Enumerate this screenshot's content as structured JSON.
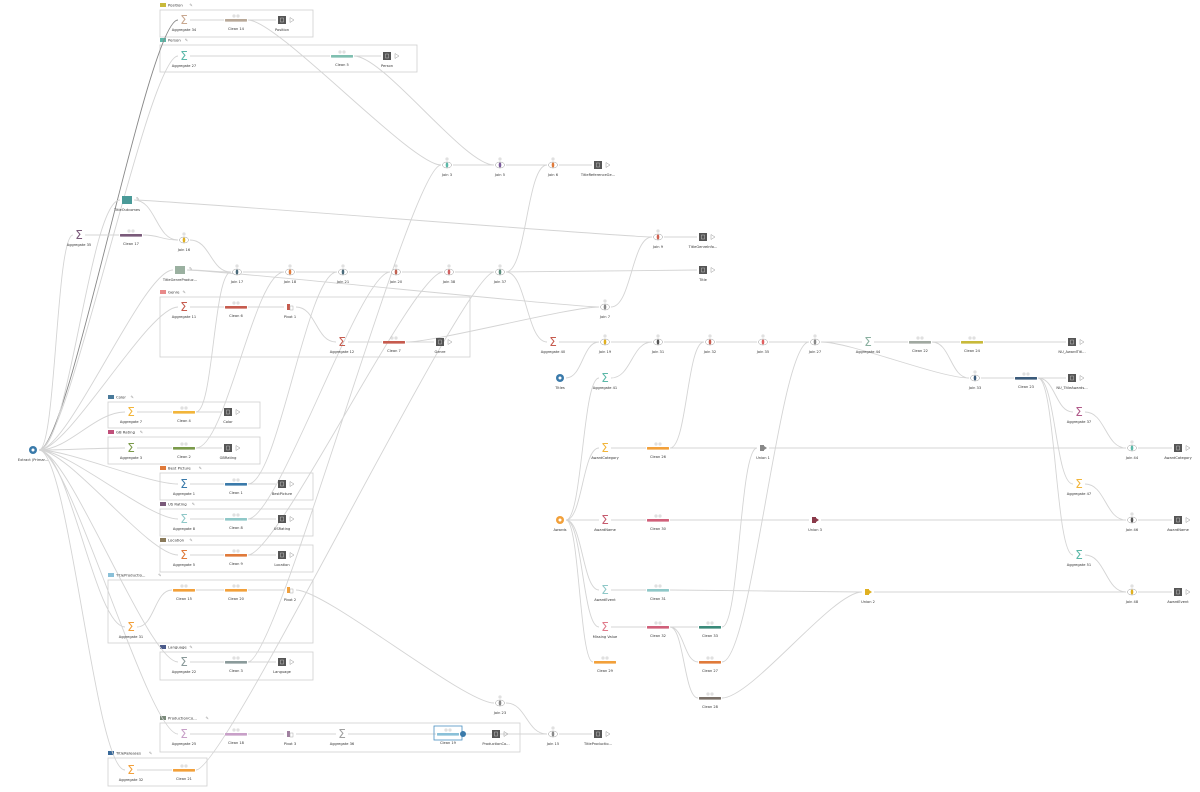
{
  "groups": [
    {
      "id": "g_position",
      "label": "Position",
      "color": "#c8b93a"
    },
    {
      "id": "g_person",
      "label": "Person",
      "color": "#5bb8a8"
    },
    {
      "id": "g_genre",
      "label": "Genre",
      "color": "#e88a8a"
    },
    {
      "id": "g_color",
      "label": "Color",
      "color": "#4a7a9a"
    },
    {
      "id": "g_gbrating",
      "label": "GB Rating",
      "color": "#c0507a"
    },
    {
      "id": "g_bestpicture",
      "label": "Best Picture",
      "color": "#e07a3a"
    },
    {
      "id": "g_usrating",
      "label": "US Rating",
      "color": "#7a5a7a"
    },
    {
      "id": "g_location",
      "label": "Location",
      "color": "#8a7a5a"
    },
    {
      "id": "g_titleproduction",
      "label": "TitleProductio...",
      "color": "#8ac0d8"
    },
    {
      "id": "g_language",
      "label": "Language",
      "color": "#4a5a8a"
    },
    {
      "id": "g_productionco",
      "label": "ProductionCo...",
      "color": "#7a8a7a"
    },
    {
      "id": "g_titlereleases",
      "label": "TitleReleases",
      "color": "#3a6a9a"
    }
  ],
  "nodes": {
    "ex": {
      "label": "Extract (Primar...",
      "type": "input",
      "color": "#3a7aaa"
    },
    "agg34": {
      "label": "Aggregate 34",
      "type": "aggregate",
      "color": "#c8a890"
    },
    "clean14": {
      "label": "Clean 14",
      "type": "clean",
      "color": "#b8a898"
    },
    "out_position": {
      "label": "Position",
      "type": "output"
    },
    "agg27": {
      "label": "Aggregate 27",
      "type": "aggregate",
      "color": "#5bb8a8"
    },
    "clean5": {
      "label": "Clean 5",
      "type": "clean",
      "color": "#7fbfb0"
    },
    "out_person": {
      "label": "Person",
      "type": "output"
    },
    "join3": {
      "label": "Join 3",
      "type": "join",
      "color": "#5bb8a8"
    },
    "join5": {
      "label": "Join 5",
      "type": "join",
      "color": "#7a5a9a"
    },
    "join6": {
      "label": "Join 6",
      "type": "join",
      "color": "#e07a3a"
    },
    "out_trg": {
      "label": "TitleReferenceGe...",
      "type": "output"
    },
    "titleoutcomes": {
      "label": "TitleOutcomes",
      "type": "folder",
      "color": "#4a9a98"
    },
    "agg35": {
      "label": "Aggregate 35",
      "type": "aggregate",
      "color": "#7a5a7a"
    },
    "clean17": {
      "label": "Clean 17",
      "type": "clean",
      "color": "#7a5a7a"
    },
    "join16": {
      "label": "Join 16",
      "type": "join",
      "color": "#e0b020"
    },
    "join9": {
      "label": "Join 9",
      "type": "join",
      "color": "#d06050"
    },
    "out_tgi": {
      "label": "TitleGenreInfo...",
      "type": "output"
    },
    "tgp": {
      "label": "TitleGenreProduc...",
      "type": "folder",
      "color": "#9ab0a0"
    },
    "join17": {
      "label": "Join 17",
      "type": "join",
      "color": "#4a6a7a"
    },
    "join18": {
      "label": "Join 18",
      "type": "join",
      "color": "#e07a3a"
    },
    "join21": {
      "label": "Join 21",
      "type": "join",
      "color": "#4a6a7a"
    },
    "join20": {
      "label": "Join 20",
      "type": "join",
      "color": "#c06050"
    },
    "join38": {
      "label": "Join 38",
      "type": "join",
      "color": "#d06060"
    },
    "join37": {
      "label": "Join 37",
      "type": "join",
      "color": "#5a8a7a"
    },
    "out_title": {
      "label": "Title",
      "type": "output"
    },
    "join7": {
      "label": "Join 7",
      "type": "join",
      "color": "#888888"
    },
    "agg11": {
      "label": "Aggregate 11",
      "type": "aggregate",
      "color": "#c65b4e"
    },
    "clean6": {
      "label": "Clean 6",
      "type": "clean",
      "color": "#c65b4e"
    },
    "pivot1": {
      "label": "Pivot 1",
      "type": "pivot",
      "color": "#c65b4e"
    },
    "agg12": {
      "label": "Aggregate 12",
      "type": "aggregate",
      "color": "#c65b4e"
    },
    "clean7": {
      "label": "Clean 7",
      "type": "clean",
      "color": "#c65b4e"
    },
    "out_genre": {
      "label": "Genre",
      "type": "output"
    },
    "agg7": {
      "label": "Aggregate 7",
      "type": "aggregate",
      "color": "#f2b53a"
    },
    "clean4": {
      "label": "Clean 4",
      "type": "clean",
      "color": "#f2b53a"
    },
    "out_color": {
      "label": "Color",
      "type": "output"
    },
    "agg3": {
      "label": "Aggregate 3",
      "type": "aggregate",
      "color": "#7a9a4a"
    },
    "clean2": {
      "label": "Clean 2",
      "type": "clean",
      "color": "#7a9a4a"
    },
    "out_gbrating": {
      "label": "GBRating",
      "type": "output"
    },
    "agg1": {
      "label": "Aggregate 1",
      "type": "aggregate",
      "color": "#3a7aaa"
    },
    "clean1": {
      "label": "Clean 1",
      "type": "clean",
      "color": "#3a7aaa"
    },
    "out_bestpicture": {
      "label": "BestPicture",
      "type": "output"
    },
    "agg8": {
      "label": "Aggregate 8",
      "type": "aggregate",
      "color": "#8fc8c8"
    },
    "clean8": {
      "label": "Clean 8",
      "type": "clean",
      "color": "#8fc8c8"
    },
    "out_usrating": {
      "label": "USRating",
      "type": "output"
    },
    "agg5": {
      "label": "Aggregate 5",
      "type": "aggregate",
      "color": "#e07a3a"
    },
    "clean9": {
      "label": "Clean 9",
      "type": "clean",
      "color": "#e07a3a"
    },
    "out_location": {
      "label": "Location",
      "type": "output"
    },
    "clean15": {
      "label": "Clean 15",
      "type": "clean",
      "color": "#f2a03a"
    },
    "clean20": {
      "label": "Clean 20",
      "type": "clean",
      "color": "#f2a03a"
    },
    "pivot2": {
      "label": "Pivot 2",
      "type": "pivot",
      "color": "#f2a03a"
    },
    "agg31": {
      "label": "Aggregate 31",
      "type": "aggregate",
      "color": "#f2a03a"
    },
    "agg22": {
      "label": "Aggregate 22",
      "type": "aggregate",
      "color": "#8a9a9a"
    },
    "clean3": {
      "label": "Clean 3",
      "type": "clean",
      "color": "#8a9a9a"
    },
    "out_language": {
      "label": "Language",
      "type": "output"
    },
    "agg25": {
      "label": "Aggregate 25",
      "type": "aggregate",
      "color": "#c8a0c8"
    },
    "clean18": {
      "label": "Clean 18",
      "type": "clean",
      "color": "#c8a0c8"
    },
    "pivot3": {
      "label": "Pivot 3",
      "type": "pivot",
      "color": "#a080a0"
    },
    "agg36": {
      "label": "Aggregate 36",
      "type": "aggregate",
      "color": "#a0a0a0"
    },
    "clean19": {
      "label": "Clean 19",
      "type": "clean",
      "color": "#8ac0d8",
      "selected": true
    },
    "out_pc": {
      "label": "ProductionCo...",
      "type": "output"
    },
    "agg32": {
      "label": "Aggregate 32",
      "type": "aggregate",
      "color": "#f2a03a"
    },
    "clean21": {
      "label": "Clean 21",
      "type": "clean",
      "color": "#f2a03a"
    },
    "join23": {
      "label": "Join 23",
      "type": "join",
      "color": "#888888"
    },
    "join15": {
      "label": "Join 15",
      "type": "join",
      "color": "#888888"
    },
    "out_tp": {
      "label": "TitleProductio...",
      "type": "output"
    },
    "agg40": {
      "label": "Aggregate 40",
      "type": "aggregate",
      "color": "#c65b4e"
    },
    "titles": {
      "label": "Titles",
      "type": "input",
      "color": "#3a7aaa"
    },
    "join19": {
      "label": "Join 19",
      "type": "join",
      "color": "#e0b020"
    },
    "agg41": {
      "label": "Aggregate 41",
      "type": "aggregate",
      "color": "#5bb8a8"
    },
    "join31": {
      "label": "Join 31",
      "type": "join",
      "color": "#555555"
    },
    "join32": {
      "label": "Join 32",
      "type": "join",
      "color": "#c65b4e"
    },
    "join35": {
      "label": "Join 35",
      "type": "join",
      "color": "#e06060"
    },
    "join27": {
      "label": "Join 27",
      "type": "join",
      "color": "#888888"
    },
    "agg44": {
      "label": "Aggregate 44",
      "type": "aggregate",
      "color": "#8ab0a0"
    },
    "clean22": {
      "label": "Clean 22",
      "type": "clean",
      "color": "#a0a8a0"
    },
    "clean24": {
      "label": "Clean 24",
      "type": "clean",
      "color": "#c8b93a"
    },
    "out_nuat": {
      "label": "NU_AwardTitl...",
      "type": "output"
    },
    "join33": {
      "label": "Join 33",
      "type": "join",
      "color": "#3a5a7a"
    },
    "clean23": {
      "label": "Clean 23",
      "type": "clean",
      "color": "#3a5a7a"
    },
    "out_nuta": {
      "label": "NU_TitleAwards...",
      "type": "output"
    },
    "awards": {
      "label": "Awards",
      "type": "input",
      "color": "#f2a03a"
    },
    "awardcategory": {
      "label": "AwardCategory",
      "type": "aggregate",
      "color": "#f2b53a"
    },
    "clean26": {
      "label": "Clean 26",
      "type": "clean",
      "color": "#f2a03a"
    },
    "union1": {
      "label": "Union 1",
      "type": "union",
      "color": "#888888"
    },
    "agg37": {
      "label": "Aggregate 37",
      "type": "aggregate",
      "color": "#b05a8a"
    },
    "join44": {
      "label": "Join 44",
      "type": "join",
      "color": "#5bb8a8"
    },
    "out_awardcategory": {
      "label": "AwardCategory",
      "type": "output"
    },
    "awardname": {
      "label": "AwardName",
      "type": "aggregate",
      "color": "#c65b6e"
    },
    "clean30": {
      "label": "Clean 30",
      "type": "clean",
      "color": "#d0607a"
    },
    "union3": {
      "label": "Union 3",
      "type": "union",
      "color": "#8a3a4a"
    },
    "agg47": {
      "label": "Aggregate 47",
      "type": "aggregate",
      "color": "#f2b53a"
    },
    "join46": {
      "label": "Join 46",
      "type": "join",
      "color": "#555555"
    },
    "out_awardname": {
      "label": "AwardName",
      "type": "output"
    },
    "agg51": {
      "label": "Aggregate 51",
      "type": "aggregate",
      "color": "#5bb8a8"
    },
    "awardevent": {
      "label": "AwardEvent",
      "type": "aggregate",
      "color": "#8fc8c8"
    },
    "clean31": {
      "label": "Clean 31",
      "type": "clean",
      "color": "#8fc8c8"
    },
    "union2": {
      "label": "Union 2",
      "type": "union",
      "color": "#e0b020"
    },
    "join48": {
      "label": "Join 48",
      "type": "join",
      "color": "#e0b020"
    },
    "out_awardevent": {
      "label": "AwardEvent",
      "type": "output"
    },
    "missingvalue": {
      "label": "Missing Value",
      "type": "aggregate",
      "color": "#e07a8a"
    },
    "clean32": {
      "label": "Clean 32",
      "type": "clean",
      "color": "#d0607a"
    },
    "clean33": {
      "label": "Clean 33",
      "type": "clean",
      "color": "#3a8a7a"
    },
    "clean27": {
      "label": "Clean 27",
      "type": "clean",
      "color": "#e07a3a"
    },
    "clean28": {
      "label": "Clean 28",
      "type": "clean",
      "color": "#7a7068"
    },
    "clean29": {
      "label": "Clean 29",
      "type": "clean",
      "color": "#f2a03a"
    }
  },
  "edges": [
    [
      "ex",
      "agg34"
    ],
    [
      "ex",
      "agg27"
    ],
    [
      "ex",
      "agg35"
    ],
    [
      "ex",
      "titleoutcomes"
    ],
    [
      "ex",
      "tgp"
    ],
    [
      "ex",
      "agg11"
    ],
    [
      "ex",
      "agg7"
    ],
    [
      "ex",
      "agg3"
    ],
    [
      "ex",
      "agg1"
    ],
    [
      "ex",
      "agg8"
    ],
    [
      "ex",
      "agg5"
    ],
    [
      "ex",
      "agg31"
    ],
    [
      "ex",
      "agg22"
    ],
    [
      "ex",
      "agg25"
    ],
    [
      "ex",
      "agg32"
    ],
    [
      "agg34",
      "clean14"
    ],
    [
      "clean14",
      "out_position"
    ],
    [
      "clean14",
      "join3"
    ],
    [
      "agg27",
      "clean5"
    ],
    [
      "clean5",
      "out_person"
    ],
    [
      "clean5",
      "join5"
    ],
    [
      "join3",
      "join5"
    ],
    [
      "join5",
      "join6"
    ],
    [
      "join6",
      "out_trg"
    ],
    [
      "agg35",
      "clean17"
    ],
    [
      "clean17",
      "join16"
    ],
    [
      "titleoutcomes",
      "join16"
    ],
    [
      "titleoutcomes",
      "join9"
    ],
    [
      "join16",
      "join17"
    ],
    [
      "tgp",
      "join17"
    ],
    [
      "tgp",
      "join7"
    ],
    [
      "join17",
      "join18"
    ],
    [
      "join18",
      "join21"
    ],
    [
      "join21",
      "join20"
    ],
    [
      "join20",
      "join38"
    ],
    [
      "join38",
      "join37"
    ],
    [
      "join37",
      "out_title"
    ],
    [
      "join37",
      "join6"
    ],
    [
      "join37",
      "agg40"
    ],
    [
      "join7",
      "join9"
    ],
    [
      "join9",
      "out_tgi"
    ],
    [
      "agg11",
      "clean6"
    ],
    [
      "clean6",
      "pivot1"
    ],
    [
      "pivot1",
      "agg12"
    ],
    [
      "agg12",
      "clean7"
    ],
    [
      "clean7",
      "out_genre"
    ],
    [
      "clean7",
      "join7"
    ],
    [
      "agg7",
      "clean4"
    ],
    [
      "clean4",
      "out_color"
    ],
    [
      "clean4",
      "join17"
    ],
    [
      "agg3",
      "clean2"
    ],
    [
      "clean2",
      "out_gbrating"
    ],
    [
      "clean2",
      "join18"
    ],
    [
      "agg1",
      "clean1"
    ],
    [
      "clean1",
      "out_bestpicture"
    ],
    [
      "clean1",
      "join21"
    ],
    [
      "agg8",
      "clean8"
    ],
    [
      "clean8",
      "out_usrating"
    ],
    [
      "clean8",
      "join20"
    ],
    [
      "agg5",
      "clean9"
    ],
    [
      "clean9",
      "out_location"
    ],
    [
      "clean9",
      "join38"
    ],
    [
      "agg31",
      "clean15"
    ],
    [
      "clean15",
      "clean20"
    ],
    [
      "clean20",
      "pivot2"
    ],
    [
      "pivot2",
      "join23"
    ],
    [
      "agg22",
      "clean3"
    ],
    [
      "clean3",
      "out_language"
    ],
    [
      "clean3",
      "join3"
    ],
    [
      "agg25",
      "clean18"
    ],
    [
      "clean18",
      "pivot3"
    ],
    [
      "pivot3",
      "agg36"
    ],
    [
      "agg36",
      "clean19"
    ],
    [
      "clean19",
      "out_pc"
    ],
    [
      "clean19",
      "join15"
    ],
    [
      "agg32",
      "clean21"
    ],
    [
      "clean21",
      "join37"
    ],
    [
      "join23",
      "join15"
    ],
    [
      "join15",
      "out_tp"
    ],
    [
      "agg40",
      "join19"
    ],
    [
      "titles",
      "join19"
    ],
    [
      "join19",
      "join31"
    ],
    [
      "agg41",
      "join31"
    ],
    [
      "join31",
      "join32"
    ],
    [
      "join32",
      "join35"
    ],
    [
      "join35",
      "join27"
    ],
    [
      "join27",
      "agg44"
    ],
    [
      "agg44",
      "clean22"
    ],
    [
      "clean22",
      "clean24"
    ],
    [
      "clean24",
      "out_nuat"
    ],
    [
      "join27",
      "join33"
    ],
    [
      "clean22",
      "join33"
    ],
    [
      "join33",
      "clean23"
    ],
    [
      "clean23",
      "out_nuta"
    ],
    [
      "clean23",
      "agg37"
    ],
    [
      "clean23",
      "agg47"
    ],
    [
      "clean23",
      "agg51"
    ],
    [
      "awards",
      "agg41"
    ],
    [
      "awards",
      "awardcategory"
    ],
    [
      "awards",
      "awardname"
    ],
    [
      "awards",
      "awardevent"
    ],
    [
      "awards",
      "missingvalue"
    ],
    [
      "awards",
      "clean29"
    ],
    [
      "awardcategory",
      "clean26"
    ],
    [
      "clean26",
      "join32"
    ],
    [
      "clean26",
      "union1"
    ],
    [
      "union1",
      "join44"
    ],
    [
      "agg37",
      "join44"
    ],
    [
      "join44",
      "out_awardcategory"
    ],
    [
      "awardname",
      "clean30"
    ],
    [
      "clean30",
      "union3"
    ],
    [
      "union3",
      "join46"
    ],
    [
      "agg47",
      "join46"
    ],
    [
      "join46",
      "out_awardname"
    ],
    [
      "awardevent",
      "clean31"
    ],
    [
      "clean31",
      "union2"
    ],
    [
      "union2",
      "join48"
    ],
    [
      "agg51",
      "join48"
    ],
    [
      "join48",
      "out_awardevent"
    ],
    [
      "missingvalue",
      "clean32"
    ],
    [
      "clean32",
      "clean33"
    ],
    [
      "clean32",
      "clean27"
    ],
    [
      "clean32",
      "clean28"
    ],
    [
      "clean33",
      "union1"
    ],
    [
      "clean27",
      "join27"
    ],
    [
      "clean28",
      "union2"
    ]
  ]
}
